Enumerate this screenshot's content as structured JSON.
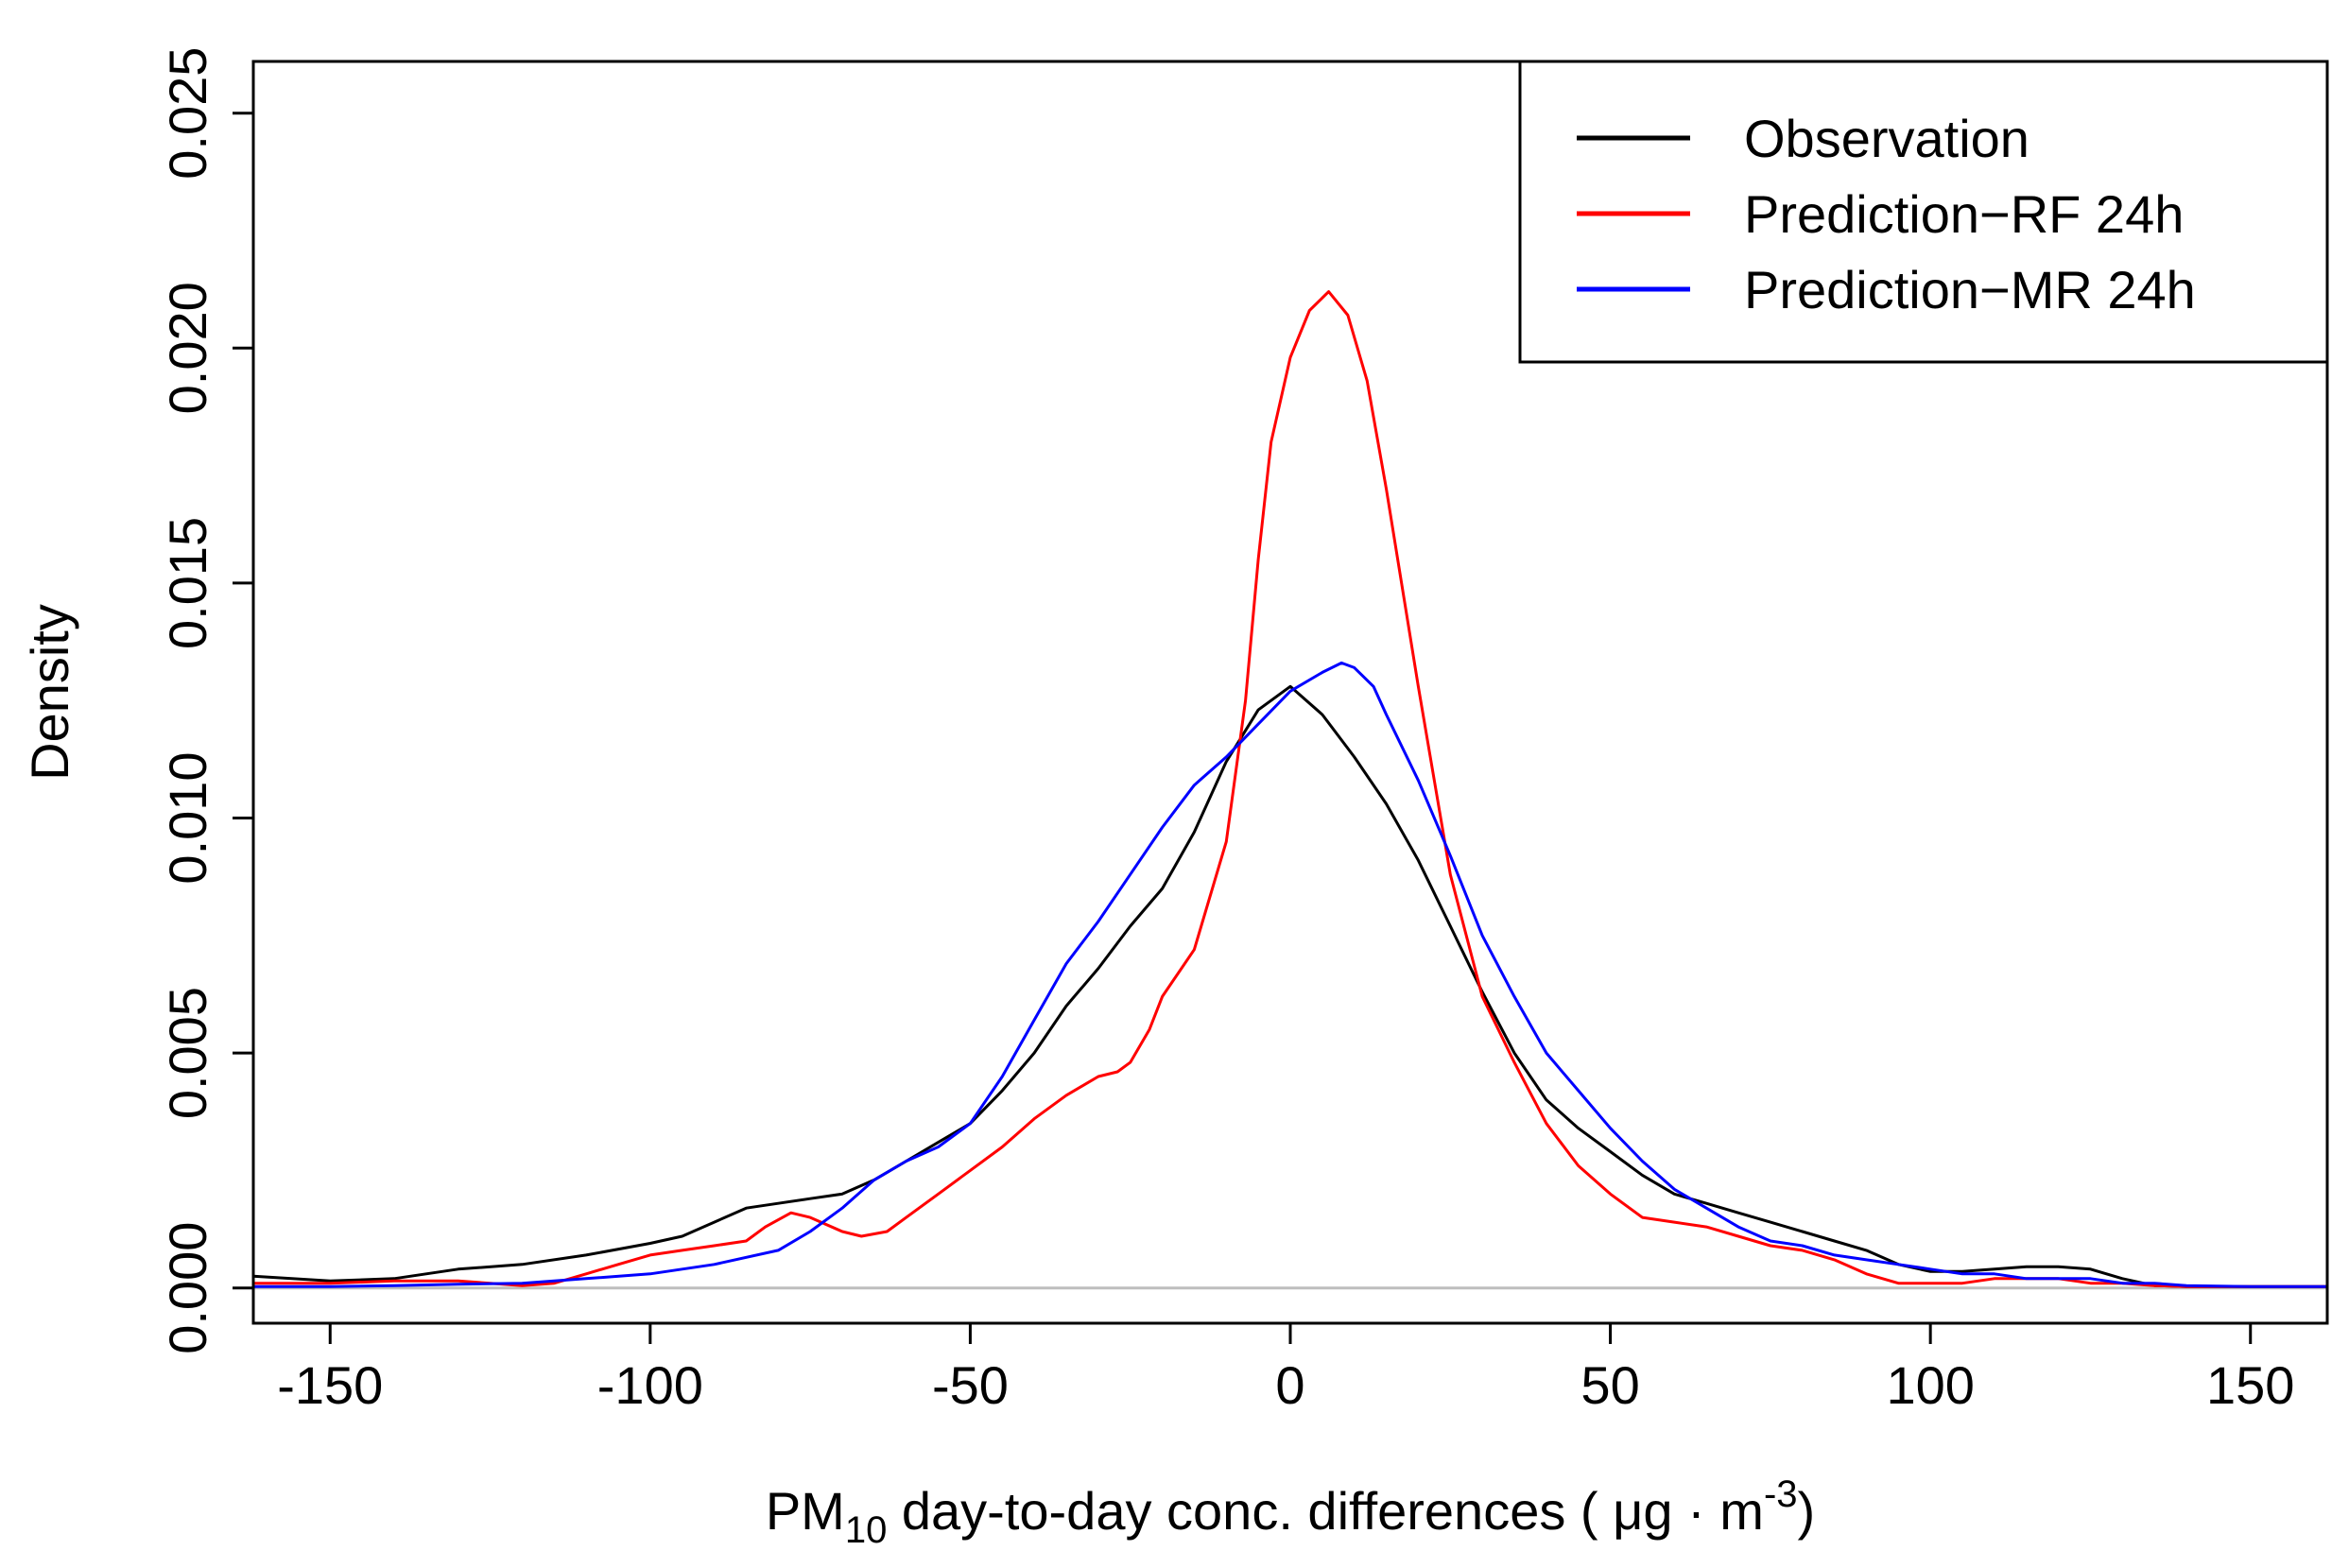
{
  "chart_data": {
    "type": "line",
    "title": "",
    "xlabel": {
      "prefix": "PM",
      "subscript": "10",
      "middle": " day-to-day conc. differences ( μg · m",
      "superscript": "-3",
      "suffix": ")"
    },
    "ylabel": "Density",
    "xlim": [
      -162,
      162
    ],
    "ylim": [
      -0.00075,
      0.0261
    ],
    "xticks": [
      -150,
      -100,
      -50,
      0,
      50,
      100,
      150
    ],
    "xtick_labels": [
      "-150",
      "-100",
      "-50",
      "0",
      "50",
      "100",
      "150"
    ],
    "yticks": [
      0.0,
      0.005,
      0.01,
      0.015,
      0.02,
      0.025
    ],
    "ytick_labels": [
      "0.000",
      "0.005",
      "0.010",
      "0.015",
      "0.020",
      "0.025"
    ],
    "baseline": 0,
    "legend_position": "top-right",
    "series": [
      {
        "name": "Observation",
        "color": "#000000",
        "x": [
          -162,
          -150,
          -140,
          -130,
          -120,
          -110,
          -100,
          -95,
          -90,
          -85,
          -80,
          -75,
          -70,
          -65,
          -60,
          -55,
          -50,
          -45,
          -40,
          -35,
          -30,
          -25,
          -20,
          -15,
          -10,
          -5,
          0,
          5,
          10,
          15,
          20,
          25,
          30,
          35,
          40,
          45,
          50,
          55,
          60,
          65,
          70,
          75,
          80,
          85,
          90,
          95,
          100,
          105,
          110,
          115,
          120,
          125,
          130,
          135,
          140,
          150,
          162
        ],
        "y": [
          0.00025,
          0.00015,
          0.0002,
          0.0004,
          0.0005,
          0.0007,
          0.00095,
          0.0011,
          0.0014,
          0.0017,
          0.0018,
          0.0019,
          0.002,
          0.0023,
          0.0027,
          0.0031,
          0.0035,
          0.0042,
          0.005,
          0.006,
          0.0068,
          0.0077,
          0.0085,
          0.0097,
          0.0112,
          0.0123,
          0.0128,
          0.0122,
          0.0113,
          0.0103,
          0.0091,
          0.0077,
          0.0063,
          0.005,
          0.004,
          0.0034,
          0.0029,
          0.0024,
          0.002,
          0.0018,
          0.0016,
          0.0014,
          0.0012,
          0.001,
          0.0008,
          0.0005,
          0.00035,
          0.00035,
          0.0004,
          0.00045,
          0.00045,
          0.0004,
          0.0002,
          5e-05,
          3e-05,
          3e-05,
          3e-05
        ]
      },
      {
        "name": "Prediction−RF 24h",
        "color": "#ff0000",
        "x": [
          -162,
          -150,
          -140,
          -130,
          -125,
          -120,
          -115,
          -110,
          -105,
          -100,
          -95,
          -90,
          -85,
          -82,
          -78,
          -75,
          -70,
          -67,
          -63,
          -60,
          -55,
          -50,
          -45,
          -40,
          -35,
          -30,
          -27,
          -25,
          -22,
          -20,
          -15,
          -10,
          -7,
          -5,
          -3,
          0,
          3,
          6,
          9,
          12,
          15,
          20,
          25,
          30,
          35,
          40,
          45,
          50,
          55,
          60,
          65,
          70,
          75,
          80,
          85,
          90,
          95,
          100,
          105,
          110,
          115,
          120,
          125,
          130,
          135,
          140,
          162
        ],
        "y": [
          0.0001,
          0.0001,
          0.00015,
          0.00015,
          0.0001,
          5e-05,
          0.0001,
          0.0003,
          0.0005,
          0.0007,
          0.0008,
          0.0009,
          0.001,
          0.0013,
          0.0016,
          0.0015,
          0.0012,
          0.0011,
          0.0012,
          0.0015,
          0.002,
          0.0025,
          0.003,
          0.0036,
          0.0041,
          0.0045,
          0.0046,
          0.0048,
          0.0055,
          0.0062,
          0.0072,
          0.0095,
          0.0125,
          0.0155,
          0.018,
          0.0198,
          0.0208,
          0.0212,
          0.0207,
          0.0193,
          0.017,
          0.0128,
          0.0088,
          0.0062,
          0.0048,
          0.0035,
          0.0026,
          0.002,
          0.0015,
          0.0014,
          0.0013,
          0.0011,
          0.0009,
          0.0008,
          0.0006,
          0.0003,
          0.0001,
          0.0001,
          0.0001,
          0.0002,
          0.0002,
          0.0002,
          0.0001,
          0.0001,
          5e-05,
          3e-05,
          3e-05
        ]
      },
      {
        "name": "Prediction−MR 24h",
        "color": "#0000ff",
        "x": [
          -162,
          -150,
          -140,
          -130,
          -120,
          -110,
          -100,
          -90,
          -80,
          -75,
          -70,
          -65,
          -60,
          -55,
          -50,
          -45,
          -40,
          -35,
          -30,
          -25,
          -20,
          -15,
          -10,
          -5,
          0,
          5,
          8,
          10,
          13,
          15,
          20,
          25,
          30,
          35,
          40,
          45,
          50,
          55,
          60,
          65,
          70,
          75,
          80,
          85,
          90,
          95,
          100,
          105,
          110,
          115,
          120,
          125,
          130,
          135,
          140,
          150,
          162
        ],
        "y": [
          3e-05,
          3e-05,
          5e-05,
          8e-05,
          0.0001,
          0.0002,
          0.0003,
          0.0005,
          0.0008,
          0.0012,
          0.0017,
          0.0023,
          0.0027,
          0.003,
          0.0035,
          0.0045,
          0.0057,
          0.0069,
          0.0078,
          0.0088,
          0.0098,
          0.0107,
          0.0113,
          0.012,
          0.0127,
          0.0131,
          0.0133,
          0.0132,
          0.0128,
          0.0122,
          0.0108,
          0.0092,
          0.0075,
          0.0062,
          0.005,
          0.0042,
          0.0034,
          0.0027,
          0.0021,
          0.0017,
          0.0013,
          0.001,
          0.0009,
          0.0007,
          0.0006,
          0.0005,
          0.0004,
          0.0003,
          0.0003,
          0.0002,
          0.0002,
          0.0002,
          0.0001,
          0.0001,
          5e-05,
          3e-05,
          3e-05
        ]
      }
    ]
  }
}
